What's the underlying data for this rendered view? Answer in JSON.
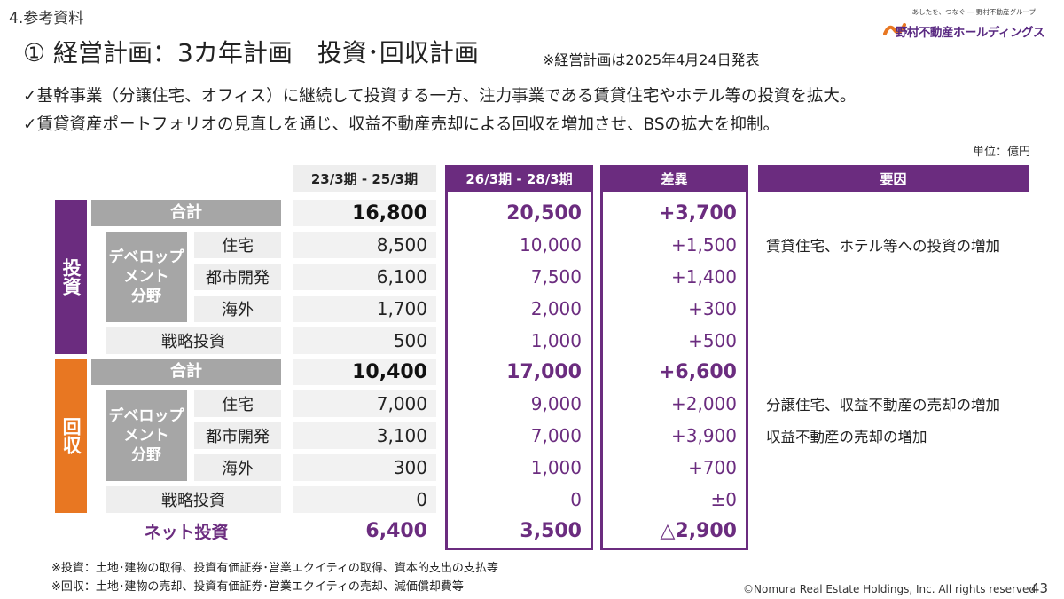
{
  "header": {
    "section": "4.参考資料",
    "title": "① 経営計画：3カ年計画　投資･回収計画",
    "title_note": "※経営計画は2025年4月24日発表",
    "logo_tagline": "あしたを、つなぐ ― 野村不動産グループ",
    "logo_name": "野村不動産ホールディングス"
  },
  "bullets": [
    "✓基幹事業（分譲住宅、オフィス）に継続して投資する一方、注力事業である賃貸住宅やホテル等の投資を拡大。",
    "✓賃貸資産ポートフォリオの見直しを通じ、収益不動産売却による回収を増加させ、BSの拡大を抑制。"
  ],
  "unit": "単位：億円",
  "table": {
    "columns": [
      "23/3期 - 25/3期",
      "26/3期 - 28/3期",
      "差異",
      "要因"
    ],
    "investment": {
      "band": "投資",
      "group": "デベロップメント分野",
      "rows": [
        {
          "label": "合計",
          "old": "16,800",
          "new": "20,500",
          "diff": "+3,700",
          "reason": ""
        },
        {
          "label": "住宅",
          "old": "8,500",
          "new": "10,000",
          "diff": "+1,500",
          "reason": "賃貸住宅、ホテル等への投資の増加"
        },
        {
          "label": "都市開発",
          "old": "6,100",
          "new": "7,500",
          "diff": "+1,400",
          "reason": ""
        },
        {
          "label": "海外",
          "old": "1,700",
          "new": "2,000",
          "diff": "+300",
          "reason": ""
        },
        {
          "label": "戦略投資",
          "old": "500",
          "new": "1,000",
          "diff": "+500",
          "reason": ""
        }
      ]
    },
    "recovery": {
      "band": "回収",
      "group": "デベロップメント分野",
      "rows": [
        {
          "label": "合計",
          "old": "10,400",
          "new": "17,000",
          "diff": "+6,600",
          "reason": ""
        },
        {
          "label": "住宅",
          "old": "7,000",
          "new": "9,000",
          "diff": "+2,000",
          "reason": "分譲住宅、収益不動産の売却の増加"
        },
        {
          "label": "都市開発",
          "old": "3,100",
          "new": "7,000",
          "diff": "+3,900",
          "reason": "収益不動産の売却の増加"
        },
        {
          "label": "海外",
          "old": "300",
          "new": "1,000",
          "diff": "+700",
          "reason": ""
        },
        {
          "label": "戦略投資",
          "old": "0",
          "new": "0",
          "diff": "±0",
          "reason": ""
        }
      ]
    },
    "net": {
      "label": "ネット投資",
      "old": "6,400",
      "new": "3,500",
      "diff": "△2,900"
    }
  },
  "footnotes": [
    "※投資：土地･建物の取得、投資有価証券･営業エクイティの取得、資本的支出の支払等",
    "※回収：土地･建物の売却、投資有価証券･営業エクイティの売却、減価償却費等"
  ],
  "copyright": "©Nomura Real Estate Holdings, Inc. All rights reserved",
  "page_number": "43",
  "colors": {
    "purple": "#6b2c7f",
    "orange": "#e87722",
    "grey": "#a6a6a6",
    "light": "#eeeeee"
  }
}
